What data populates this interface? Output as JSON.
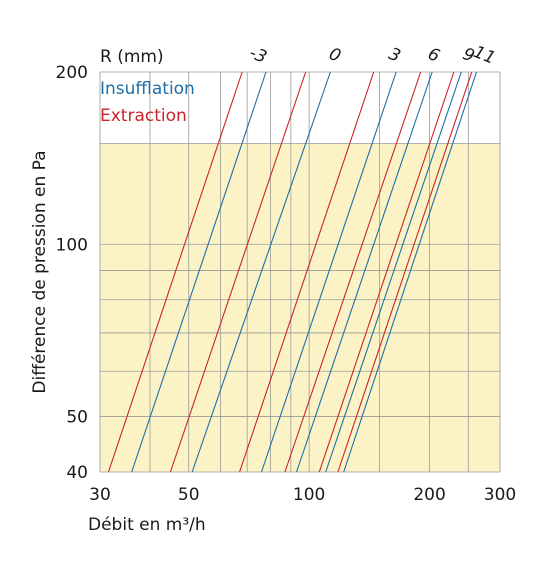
{
  "chart_data": {
    "type": "line",
    "xlabel": "Débit en m³/h",
    "ylabel": "Différence de pression en Pa",
    "xscale": "log",
    "yscale": "log",
    "xlim": [
      30,
      300
    ],
    "ylim": [
      40,
      200
    ],
    "x_ticks": [
      30,
      50,
      100,
      200,
      300
    ],
    "x_tick_labels": [
      "30",
      "50",
      "100",
      "200",
      "300"
    ],
    "y_ticks": [
      40,
      50,
      100,
      200
    ],
    "y_tick_labels": [
      "40",
      "50",
      "100",
      "200"
    ],
    "grid": true,
    "shaded_region": {
      "y_range": [
        40,
        150
      ],
      "color": "#fbf3c6"
    },
    "r_header": "R (mm)",
    "r_labels": [
      {
        "text": "-3",
        "x": 72
      },
      {
        "text": "0",
        "x": 112
      },
      {
        "text": "3",
        "x": 158
      },
      {
        "text": "6",
        "x": 198
      },
      {
        "text": "9",
        "x": 242
      },
      {
        "text": "11",
        "x": 265
      }
    ],
    "legend": {
      "position": "top-left",
      "entries": [
        {
          "name": "Insufflation",
          "color": "#1f6fa8"
        },
        {
          "name": "Extraction",
          "color": "#c8252c"
        }
      ]
    },
    "series": [
      {
        "color": "#c8252c",
        "points": [
          [
            31.5,
            40
          ],
          [
            68,
            200
          ]
        ]
      },
      {
        "color": "#1f6fa8",
        "points": [
          [
            36,
            40
          ],
          [
            78,
            200
          ]
        ]
      },
      {
        "color": "#c8252c",
        "points": [
          [
            45,
            40
          ],
          [
            98,
            200
          ]
        ]
      },
      {
        "color": "#1f6fa8",
        "points": [
          [
            51,
            40
          ],
          [
            113,
            200
          ]
        ]
      },
      {
        "color": "#c8252c",
        "points": [
          [
            67,
            40
          ],
          [
            145,
            200
          ]
        ]
      },
      {
        "color": "#1f6fa8",
        "points": [
          [
            76,
            40
          ],
          [
            165,
            200
          ]
        ]
      },
      {
        "color": "#c8252c",
        "points": [
          [
            87,
            40
          ],
          [
            190,
            200
          ]
        ]
      },
      {
        "color": "#1f6fa8",
        "points": [
          [
            93,
            40
          ],
          [
            203,
            200
          ]
        ]
      },
      {
        "color": "#c8252c",
        "points": [
          [
            106,
            40
          ],
          [
            230,
            200
          ]
        ]
      },
      {
        "color": "#1f6fa8",
        "points": [
          [
            110,
            40
          ],
          [
            240,
            200
          ]
        ]
      },
      {
        "color": "#c8252c",
        "points": [
          [
            118,
            40
          ],
          [
            255,
            200
          ]
        ]
      },
      {
        "color": "#1f6fa8",
        "points": [
          [
            122,
            40
          ],
          [
            262,
            200
          ]
        ]
      }
    ]
  }
}
